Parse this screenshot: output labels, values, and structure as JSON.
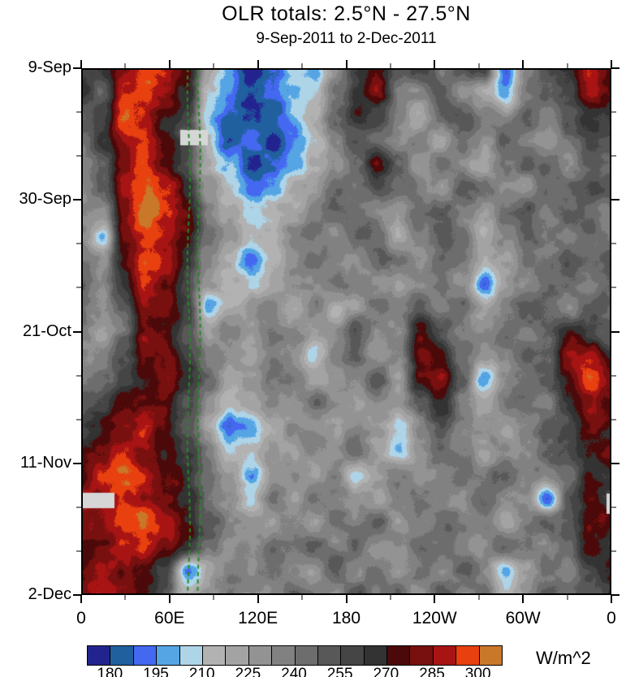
{
  "chart_data": {
    "type": "heatmap",
    "title": "OLR totals: 2.5°N - 27.5°N",
    "subtitle": "9-Sep-2011 to 2-Dec-2011",
    "units_label": "W/m^2",
    "x_axis": {
      "tick_labels": [
        "0",
        "60E",
        "120E",
        "180",
        "120W",
        "60W",
        "0"
      ],
      "tick_lons": [
        0,
        60,
        120,
        180,
        240,
        300,
        360
      ],
      "minor_step_deg": 30,
      "range_deg": [
        0,
        360
      ]
    },
    "y_axis": {
      "tick_labels": [
        "9-Sep",
        "30-Sep",
        "21-Oct",
        "11-Nov",
        "2-Dec"
      ],
      "tick_days": [
        0,
        21,
        42,
        63,
        84
      ],
      "minor_step_days": 7,
      "range_days": [
        0,
        84
      ]
    },
    "colorbar": {
      "tick_labels": [
        "180",
        "195",
        "210",
        "225",
        "240",
        "255",
        "270",
        "285",
        "300"
      ],
      "tick_boundary_indices": [
        1,
        3,
        5,
        7,
        9,
        11,
        13,
        15,
        17
      ],
      "level_start": 172.5,
      "level_step": 7.5,
      "segment_colors": [
        "#23238f",
        "#20609f",
        "#4468f0",
        "#55a5e5",
        "#aed4e8",
        "#b2b2b2",
        "#a3a3a3",
        "#939393",
        "#818181",
        "#6d6d6d",
        "#585858",
        "#454545",
        "#333333",
        "#4c0909",
        "#781010",
        "#a81414",
        "#e8400f",
        "#c87828"
      ]
    },
    "annotations": {
      "green_dashed_lines": {
        "lons": [
          73,
          80
        ],
        "color": "#228b22"
      },
      "missing_blocks": {
        "color": "#d6d6d6",
        "rects": [
          {
            "x": 0.1868,
            "y": 0.1171,
            "w": 0.0521,
            "h": 0.0293
          },
          {
            "x": 0.0,
            "y": 0.8059,
            "w": 0.0628,
            "h": 0.0293
          },
          {
            "x": 0.9908,
            "y": 0.8074,
            "w": 0.0092,
            "h": 0.0385
          }
        ]
      }
    },
    "grid": {
      "cols": 26,
      "rows": 23,
      "lon_range": [
        0,
        360
      ],
      "day_range": [
        0,
        84
      ],
      "values": [
        [
          259,
          266,
          281,
          296,
          289,
          273,
          221,
          199,
          176,
          191,
          206,
          199,
          229,
          259,
          273,
          251,
          259,
          236,
          251,
          259,
          191,
          236,
          251,
          266,
          289,
          281
        ],
        [
          266,
          251,
          289,
          296,
          281,
          266,
          206,
          191,
          176,
          186,
          199,
          214,
          236,
          266,
          281,
          244,
          236,
          251,
          229,
          221,
          199,
          236,
          251,
          259,
          289,
          273
        ],
        [
          251,
          259,
          296,
          289,
          273,
          259,
          199,
          186,
          176,
          186,
          199,
          214,
          244,
          273,
          259,
          236,
          221,
          244,
          251,
          236,
          229,
          244,
          236,
          251,
          266,
          259
        ],
        [
          244,
          266,
          289,
          296,
          273,
          251,
          214,
          181,
          191,
          176,
          191,
          206,
          236,
          251,
          244,
          229,
          236,
          221,
          244,
          229,
          251,
          236,
          229,
          244,
          259,
          251
        ],
        [
          236,
          251,
          281,
          296,
          281,
          259,
          221,
          199,
          176,
          191,
          199,
          221,
          229,
          244,
          273,
          251,
          229,
          244,
          236,
          221,
          244,
          251,
          244,
          236,
          251,
          244
        ],
        [
          229,
          244,
          289,
          303,
          289,
          266,
          229,
          206,
          191,
          199,
          214,
          229,
          244,
          236,
          251,
          244,
          236,
          229,
          251,
          244,
          236,
          229,
          251,
          244,
          259,
          251
        ],
        [
          236,
          229,
          281,
          303,
          289,
          273,
          236,
          221,
          206,
          214,
          221,
          236,
          251,
          244,
          236,
          229,
          244,
          251,
          236,
          229,
          244,
          251,
          236,
          251,
          244,
          236
        ],
        [
          236,
          203,
          281,
          296,
          289,
          273,
          244,
          229,
          214,
          221,
          236,
          244,
          229,
          251,
          244,
          221,
          236,
          251,
          244,
          214,
          236,
          251,
          244,
          236,
          251,
          244
        ],
        [
          244,
          229,
          273,
          296,
          286,
          266,
          236,
          221,
          194,
          214,
          229,
          244,
          236,
          229,
          251,
          244,
          229,
          244,
          236,
          221,
          229,
          244,
          236,
          251,
          244,
          251
        ],
        [
          251,
          236,
          266,
          289,
          281,
          259,
          229,
          214,
          206,
          221,
          236,
          229,
          244,
          236,
          229,
          221,
          236,
          244,
          229,
          191,
          221,
          236,
          251,
          244,
          236,
          244
        ],
        [
          244,
          229,
          251,
          286,
          278,
          259,
          199,
          221,
          229,
          236,
          221,
          236,
          214,
          229,
          244,
          236,
          251,
          236,
          244,
          221,
          236,
          251,
          244,
          236,
          251,
          244
        ],
        [
          236,
          221,
          244,
          281,
          273,
          251,
          221,
          236,
          229,
          244,
          236,
          229,
          236,
          251,
          236,
          229,
          273,
          251,
          236,
          229,
          244,
          236,
          251,
          273,
          259,
          251
        ],
        [
          229,
          236,
          251,
          278,
          281,
          259,
          236,
          229,
          221,
          236,
          229,
          203,
          236,
          244,
          229,
          236,
          281,
          273,
          244,
          229,
          236,
          251,
          244,
          281,
          286,
          266
        ],
        [
          236,
          244,
          259,
          273,
          286,
          266,
          244,
          221,
          229,
          244,
          236,
          221,
          229,
          236,
          251,
          221,
          273,
          286,
          251,
          196,
          229,
          244,
          251,
          273,
          296,
          281
        ],
        [
          251,
          259,
          273,
          281,
          278,
          259,
          236,
          214,
          221,
          236,
          229,
          244,
          236,
          221,
          236,
          229,
          251,
          273,
          236,
          221,
          236,
          244,
          236,
          266,
          286,
          273
        ],
        [
          259,
          273,
          281,
          289,
          273,
          251,
          221,
          189,
          196,
          221,
          236,
          229,
          221,
          236,
          229,
          206,
          236,
          251,
          236,
          229,
          221,
          236,
          251,
          259,
          281,
          273
        ],
        [
          273,
          281,
          289,
          286,
          273,
          259,
          236,
          206,
          214,
          229,
          221,
          236,
          229,
          244,
          221,
          199,
          229,
          244,
          236,
          221,
          236,
          229,
          244,
          251,
          273,
          281
        ],
        [
          281,
          289,
          296,
          289,
          281,
          266,
          244,
          221,
          199,
          229,
          236,
          221,
          236,
          206,
          229,
          236,
          229,
          236,
          244,
          236,
          251,
          236,
          236,
          244,
          266,
          259
        ],
        [
          286,
          289,
          296,
          289,
          281,
          266,
          244,
          229,
          203,
          236,
          229,
          244,
          236,
          229,
          221,
          236,
          244,
          236,
          229,
          244,
          236,
          229,
          191,
          251,
          273,
          266
        ],
        [
          281,
          289,
          296,
          299,
          286,
          273,
          251,
          236,
          229,
          221,
          236,
          229,
          244,
          236,
          251,
          229,
          236,
          251,
          244,
          236,
          221,
          236,
          244,
          251,
          281,
          273
        ],
        [
          273,
          281,
          289,
          296,
          281,
          266,
          244,
          229,
          236,
          244,
          236,
          251,
          236,
          244,
          229,
          236,
          251,
          244,
          236,
          229,
          244,
          236,
          229,
          244,
          273,
          266
        ],
        [
          281,
          286,
          281,
          273,
          259,
          196,
          221,
          236,
          229,
          244,
          236,
          229,
          251,
          236,
          244,
          229,
          244,
          236,
          251,
          236,
          198,
          221,
          244,
          236,
          259,
          273
        ],
        [
          286,
          289,
          286,
          273,
          251,
          214,
          229,
          244,
          236,
          229,
          244,
          236,
          229,
          251,
          236,
          244,
          229,
          251,
          236,
          244,
          214,
          229,
          251,
          244,
          251,
          266
        ]
      ]
    }
  }
}
